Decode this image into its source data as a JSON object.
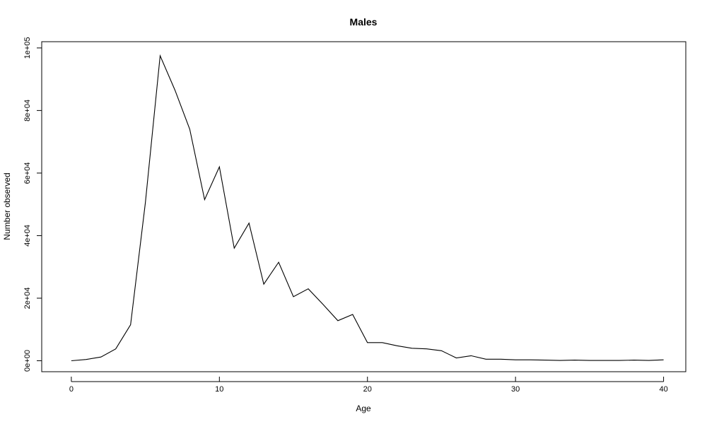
{
  "chart_data": {
    "type": "line",
    "title": "Males",
    "xlabel": "Age",
    "ylabel": "Number observed",
    "xlim": [
      -2,
      41.5
    ],
    "ylim": [
      -3500,
      102000
    ],
    "x_ticks": [
      0,
      10,
      20,
      30,
      40
    ],
    "x_tick_labels": [
      "0",
      "10",
      "20",
      "30",
      "40"
    ],
    "y_ticks": [
      0,
      20000,
      40000,
      60000,
      80000,
      100000
    ],
    "y_tick_labels": [
      "0e+00",
      "2e+04",
      "4e+04",
      "6e+04",
      "8e+04",
      "1e+05"
    ],
    "grid": false,
    "series": [
      {
        "x": [
          0,
          1,
          2,
          3,
          4,
          5,
          6,
          7,
          8,
          9,
          10,
          11,
          12,
          13,
          14,
          15,
          16,
          17,
          18,
          19,
          20,
          21,
          22,
          23,
          24,
          25,
          26,
          27,
          28,
          29,
          30,
          31,
          32,
          33,
          34,
          35,
          36,
          37,
          38,
          39,
          40
        ],
        "values": [
          0,
          400,
          1200,
          3800,
          11500,
          50500,
          97500,
          86500,
          74000,
          51500,
          62000,
          36000,
          44000,
          24500,
          31500,
          20500,
          23000,
          18000,
          12800,
          14800,
          5800,
          5800,
          4800,
          4000,
          3800,
          3200,
          900,
          1600,
          500,
          500,
          300,
          300,
          200,
          100,
          200,
          100,
          100,
          100,
          200,
          100,
          300
        ]
      }
    ]
  }
}
